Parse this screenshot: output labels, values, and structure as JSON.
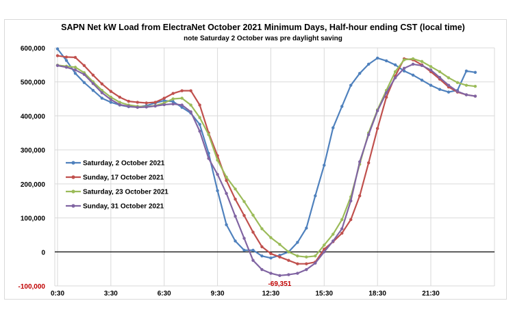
{
  "chart_data": {
    "type": "line",
    "title": "SAPN Net kW Load from ElectraNet October 2021 Minimum Days, Half-hour  ending CST (local time)",
    "subtitle": "note Saturday 2 October was pre daylight saving",
    "xlabel": "",
    "ylabel": "",
    "x_tick_labels": [
      "0:30",
      "3:30",
      "6:30",
      "9:30",
      "12:30",
      "15:30",
      "18:30",
      "21:30"
    ],
    "y_tick_labels": [
      "-100,000",
      "0",
      "100,000",
      "200,000",
      "300,000",
      "400,000",
      "500,000",
      "600,000"
    ],
    "ylim": [
      -100000,
      600000
    ],
    "x_unit": "half-hour interval (1 = 0:30, 48 = 24:00)",
    "x": [
      1,
      2,
      3,
      4,
      5,
      6,
      7,
      8,
      9,
      10,
      11,
      12,
      13,
      14,
      15,
      16,
      17,
      18,
      19,
      20,
      21,
      22,
      23,
      24,
      25,
      26,
      27,
      28,
      29,
      30,
      31,
      32,
      33,
      34,
      35,
      36,
      37,
      38,
      39,
      40,
      41,
      42,
      43,
      44,
      45,
      46,
      47,
      48
    ],
    "grid": true,
    "legend_position": "left-middle",
    "series": [
      {
        "name": "Saturday, 2 October 2021",
        "color": "#4f81bd",
        "values": [
          597000,
          563000,
          525000,
          498000,
          475000,
          452000,
          440000,
          432000,
          427000,
          426000,
          430000,
          438000,
          445000,
          442000,
          425000,
          408000,
          375000,
          290000,
          180000,
          80000,
          32000,
          5000,
          5000,
          -12000,
          -18000,
          -10000,
          0,
          28000,
          70000,
          165000,
          255000,
          365000,
          428000,
          490000,
          525000,
          552000,
          570000,
          562000,
          550000,
          532000,
          520000,
          505000,
          490000,
          478000,
          470000,
          475000,
          532000,
          528000
        ]
      },
      {
        "name": "Sunday, 17 October 2021",
        "color": "#c0504d",
        "values": [
          577000,
          573000,
          572000,
          548000,
          520000,
          494000,
          472000,
          455000,
          443000,
          440000,
          438000,
          440000,
          452000,
          466000,
          474000,
          474000,
          432000,
          350000,
          283000,
          210000,
          155000,
          107000,
          58000,
          15000,
          -5000,
          -15000,
          -25000,
          -35000,
          -35000,
          -30000,
          8000,
          30000,
          55000,
          95000,
          165000,
          262000,
          363000,
          455000,
          517000,
          568000,
          565000,
          550000,
          530000,
          508000,
          485000,
          470000,
          462000,
          458000
        ]
      },
      {
        "name": "Saturday, 23 October 2021",
        "color": "#9bbb59",
        "values": [
          549000,
          546000,
          543000,
          527000,
          500000,
          475000,
          455000,
          440000,
          432000,
          428000,
          427000,
          430000,
          438000,
          450000,
          452000,
          432000,
          395000,
          345000,
          270000,
          220000,
          185000,
          148000,
          108000,
          68000,
          42000,
          22000,
          0,
          -12000,
          -15000,
          -12000,
          20000,
          52000,
          95000,
          162000,
          258000,
          350000,
          418000,
          475000,
          530000,
          565000,
          568000,
          560000,
          545000,
          530000,
          512000,
          498000,
          490000,
          487000
        ]
      },
      {
        "name": "Sunday, 31 October 2021",
        "color": "#8064a2",
        "values": [
          548000,
          543000,
          535000,
          522000,
          495000,
          468000,
          448000,
          433000,
          428000,
          425000,
          426000,
          429000,
          433000,
          435000,
          432000,
          412000,
          355000,
          275000,
          228000,
          172000,
          105000,
          40000,
          -25000,
          -52000,
          -63000,
          -69351,
          -67000,
          -63000,
          -52000,
          -33000,
          0,
          32000,
          68000,
          150000,
          265000,
          345000,
          415000,
          468000,
          512000,
          540000,
          552000,
          548000,
          535000,
          513000,
          490000,
          472000,
          462000,
          458000
        ]
      }
    ],
    "annotations": [
      {
        "text": "-69,351",
        "x": 26,
        "y": -69351
      }
    ]
  }
}
